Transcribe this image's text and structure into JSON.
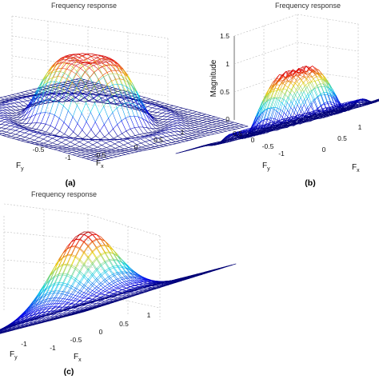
{
  "chart_data": [
    {
      "panel": "(a)",
      "type": "surface",
      "title": "Frequency response",
      "xlabel": "F_x",
      "ylabel": "F_y",
      "zlabel": "",
      "xlim": [
        -1,
        1
      ],
      "ylim": [
        -1,
        1
      ],
      "x_ticks": [
        "-0.5",
        "0",
        "0.5",
        "1"
      ],
      "y_ticks": [
        "-1",
        "-0.5"
      ],
      "z_ticks": [],
      "shape": "flat-topped bump with a shallow central dip, plateau height ~1.0, ringing near edges",
      "surface_params": {
        "peak": 1.0,
        "width": 0.46,
        "order": 4,
        "dip": 0.1,
        "dip_width": 0.15,
        "ripple": 0.05
      }
    },
    {
      "panel": "(b)",
      "type": "surface",
      "title": "Frequency response",
      "xlabel": "F_x",
      "ylabel": "F_y",
      "zlabel": "Magnitude",
      "xlim": [
        -1,
        1
      ],
      "ylim": [
        -1,
        1
      ],
      "zlim": [
        0,
        1.5
      ],
      "x_ticks": [
        "0",
        "0.5",
        "1"
      ],
      "y_ticks": [
        "-1",
        "-0.5",
        "0",
        "0.5"
      ],
      "z_ticks": [
        "0",
        "0.5",
        "1",
        "1.5"
      ],
      "shape": "flat-topped bump with peaked ripples on top (~1.1), strong ripple near edges",
      "surface_params": {
        "peak": 0.92,
        "width": 0.45,
        "order": 4,
        "dip": 0.0,
        "dip_width": 0.15,
        "ripple": 0.1,
        "top_ripple": 0.15
      }
    },
    {
      "panel": "(c)",
      "type": "surface",
      "title": "Frequency response",
      "xlabel": "F_x",
      "ylabel": "F_y",
      "zlabel": "",
      "xlim": [
        -1,
        1
      ],
      "ylim": [
        -1,
        1
      ],
      "x_ticks": [
        "-1",
        "-0.5",
        "0",
        "0.5",
        "1"
      ],
      "y_ticks": [
        "-1"
      ],
      "z_ticks": [],
      "shape": "smooth Gaussian bump, peak ~1.0",
      "surface_params": {
        "peak": 1.0,
        "width": 0.42,
        "order": 2,
        "dip": 0.0,
        "dip_width": 0.15,
        "ripple": 0.0
      }
    }
  ],
  "labels": {
    "a": "(a)",
    "b": "(b)",
    "c": "(c)"
  }
}
